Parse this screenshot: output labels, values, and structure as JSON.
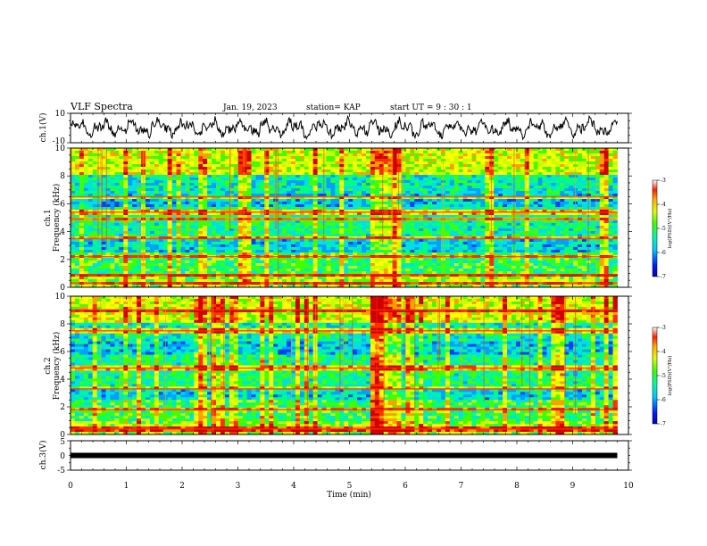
{
  "header": {
    "title": "VLF Spectra",
    "date": "Jan. 19, 2023",
    "station": "station= KAP",
    "start": "start  UT =   9  : 30 : 1"
  },
  "colors": {
    "spectrogram": [
      "#0000c8",
      "#0040ff",
      "#00a0ff",
      "#00e0e0",
      "#00ff80",
      "#40ff00",
      "#c8ff00",
      "#ffff00",
      "#ffa000",
      "#ff3000",
      "#d00000"
    ],
    "trace": "#000000",
    "frame": "#000000"
  },
  "chart_data": [
    {
      "panel": "ch1-waveform",
      "type": "line",
      "ylabel": "ch.1(V)",
      "ylim": [
        -10,
        10
      ],
      "yticks": [
        "10",
        "-10"
      ],
      "x": "time_min",
      "xlim": [
        0,
        10
      ],
      "trace_span_min": [
        0,
        9.8
      ],
      "description_of_values": "noisy voltage oscillating approximately between -7 and +7 V"
    },
    {
      "panel": "ch1-spectrogram",
      "type": "heatmap",
      "ylabel_line1": "ch.1",
      "ylabel_line2": "Frequency  (kHz)",
      "ylim": [
        0,
        10
      ],
      "yticks": [
        "10",
        "8",
        "6",
        "4",
        "2",
        "0"
      ],
      "xlim": [
        0,
        10
      ],
      "data_span_min": [
        0,
        9.8
      ],
      "colorbar": {
        "label": "log(PSD)(V²/Hz)",
        "range": [
          -7,
          -3
        ],
        "ticks": [
          "-3",
          "-4",
          "-5",
          "-6",
          "-7"
        ]
      },
      "bright_bands_khz": [
        0.3,
        0.9,
        2.2,
        3.5,
        4.9,
        5.4,
        6.5
      ],
      "burst_intervals_min": [
        [
          2.3,
          2.45
        ],
        [
          5.35,
          5.9
        ]
      ]
    },
    {
      "panel": "ch2-spectrogram",
      "type": "heatmap",
      "ylabel_line1": "ch.2",
      "ylabel_line2": "Frequency  (kHz)",
      "ylim": [
        0,
        10
      ],
      "yticks": [
        "10",
        "8",
        "6",
        "4",
        "2",
        "0"
      ],
      "xlim": [
        0,
        10
      ],
      "data_span_min": [
        0,
        9.8
      ],
      "colorbar": {
        "label": "log(PSD)(V²/Hz)",
        "range": [
          -7,
          -3
        ],
        "ticks": [
          "-3",
          "-4",
          "-5",
          "-6",
          "-7"
        ]
      },
      "bright_bands_khz": [
        0.4,
        1.8,
        3.3,
        4.8,
        7.5,
        9.0
      ],
      "burst_intervals_min": [
        [
          2.3,
          2.45
        ],
        [
          5.35,
          5.9
        ]
      ]
    },
    {
      "panel": "ch3-waveform",
      "type": "line",
      "ylabel": "ch.3(V)",
      "ylim": [
        -5,
        5
      ],
      "yticks": [
        "5",
        "0",
        "-5"
      ],
      "xlim": [
        0,
        10
      ],
      "value_level_v": 0,
      "trace_span_min": [
        0,
        9.8
      ],
      "xlabel": "Time  (min)",
      "xticks": [
        "0",
        "1",
        "2",
        "3",
        "4",
        "5",
        "6",
        "7",
        "8",
        "9",
        "10"
      ]
    }
  ]
}
